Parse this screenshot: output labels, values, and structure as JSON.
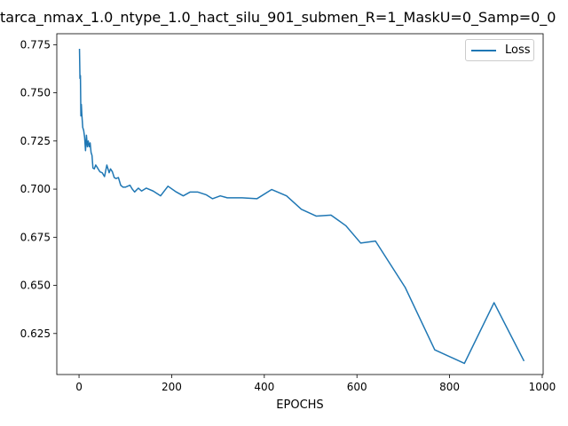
{
  "chart_data": {
    "type": "line",
    "title": "tarca_nmax_1.0_ntype_1.0_hact_silu_901_submen_R=1_MaskU=0_Samp=0_0",
    "xlabel": "EPOCHS",
    "ylabel": "",
    "xlim": [
      -48,
      1002
    ],
    "ylim": [
      0.6037,
      0.7807
    ],
    "xticks": [
      0,
      200,
      400,
      600,
      800,
      1000
    ],
    "yticks": [
      0.625,
      0.65,
      0.675,
      0.7,
      0.725,
      0.75,
      0.775
    ],
    "ytick_labels": [
      "0.625",
      "0.650",
      "0.675",
      "0.700",
      "0.725",
      "0.750",
      "0.775"
    ],
    "grid": false,
    "legend_position": "top-right",
    "series": [
      {
        "name": "Loss",
        "color": "#1f77b4",
        "x": [
          1,
          2,
          3,
          4,
          5,
          6,
          8,
          10,
          12,
          14,
          16,
          18,
          20,
          22,
          24,
          26,
          28,
          30,
          33,
          36,
          40,
          45,
          50,
          55,
          60,
          65,
          68,
          72,
          76,
          80,
          85,
          90,
          95,
          100,
          110,
          115,
          120,
          128,
          135,
          145,
          160,
          176,
          192,
          210,
          225,
          240,
          256,
          275,
          288,
          305,
          320,
          352,
          384,
          416,
          448,
          480,
          512,
          544,
          576,
          608,
          640,
          704,
          768,
          832,
          896,
          960
        ],
        "y": [
          0.7725,
          0.7575,
          0.759,
          0.738,
          0.744,
          0.739,
          0.732,
          0.7305,
          0.727,
          0.72,
          0.728,
          0.722,
          0.725,
          0.722,
          0.724,
          0.719,
          0.7175,
          0.711,
          0.7105,
          0.7125,
          0.711,
          0.709,
          0.7085,
          0.7065,
          0.7125,
          0.7085,
          0.7105,
          0.709,
          0.706,
          0.7055,
          0.706,
          0.702,
          0.701,
          0.701,
          0.702,
          0.7,
          0.6985,
          0.7005,
          0.699,
          0.7005,
          0.699,
          0.6965,
          0.7015,
          0.6985,
          0.6965,
          0.6985,
          0.6985,
          0.697,
          0.695,
          0.6965,
          0.6955,
          0.6955,
          0.695,
          0.6998,
          0.6965,
          0.6895,
          0.686,
          0.6865,
          0.681,
          0.672,
          0.673,
          0.649,
          0.6165,
          0.6095,
          0.641,
          0.611
        ]
      }
    ]
  }
}
